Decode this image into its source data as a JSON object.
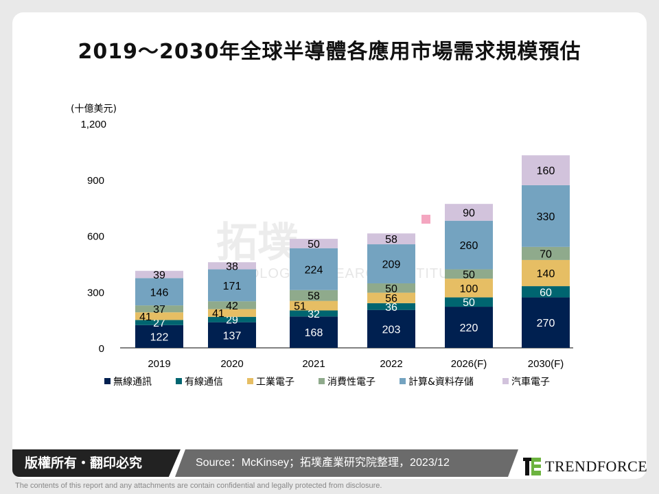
{
  "title": "2019～2030年全球半導體各應用市場需求規模預估",
  "watermark": {
    "main": "拓墣",
    "sub": "TOPOLOGY RESEARCH INSTITUTE"
  },
  "chart_data": {
    "type": "bar",
    "stacked": true,
    "title": "2019～2030年全球半導體各應用市場需求規模預估",
    "ylabel": "(十億美元)",
    "ylim": [
      0,
      1200
    ],
    "yticks": [
      "0",
      "300",
      "600",
      "900",
      "1,200"
    ],
    "ytick_values": [
      0,
      300,
      600,
      900,
      1200
    ],
    "categories": [
      "2019",
      "2020",
      "2021",
      "2022",
      "2026(F)",
      "2030(F)"
    ],
    "legend_position": "bottom",
    "grid": false,
    "series": [
      {
        "name": "無線通訊",
        "color": "#002050",
        "label_color": "#ffffff",
        "values": [
          122,
          137,
          168,
          203,
          220,
          270
        ]
      },
      {
        "name": "有線通信",
        "color": "#006570",
        "label_color": "#ffffff",
        "values": [
          27,
          29,
          32,
          36,
          50,
          60
        ]
      },
      {
        "name": "工業電子",
        "color": "#E6BE64",
        "label_color": "#000000",
        "values": [
          41,
          41,
          51,
          56,
          100,
          140
        ]
      },
      {
        "name": "消費性電子",
        "color": "#8FAA8C",
        "label_color": "#000000",
        "values": [
          37,
          42,
          58,
          50,
          50,
          70
        ]
      },
      {
        "name": "計算&資料存儲",
        "color": "#74A3C0",
        "label_color": "#000000",
        "values": [
          146,
          171,
          224,
          209,
          260,
          330
        ]
      },
      {
        "name": "汽車電子",
        "color": "#D2C3DC",
        "label_color": "#000000",
        "values": [
          39,
          38,
          50,
          58,
          90,
          160
        ]
      }
    ]
  },
  "footer": {
    "copyright": "版權所有・翻印必究",
    "source": "Source：McKinsey；拓墣產業研究院整理，2023/12",
    "logo": "TRENDFORCE",
    "disclaimer": "The contents of this report and any attachments are contain confidential and legally protected from disclosure."
  }
}
